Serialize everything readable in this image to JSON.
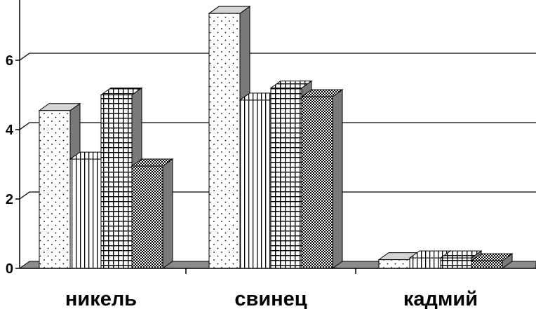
{
  "chart_data": {
    "type": "bar",
    "title": "",
    "xlabel": "",
    "ylabel": "",
    "categories": [
      "никель",
      "свинец",
      "кадмий"
    ],
    "ylim": [
      0,
      8
    ],
    "yticks": [
      "0",
      "2",
      "4",
      "6"
    ],
    "grid": true,
    "legend": "none",
    "series": [
      {
        "pattern": "dots",
        "values": [
          4.55,
          7.35,
          0.25
        ]
      },
      {
        "pattern": "vertical-lines",
        "values": [
          3.15,
          4.85,
          0.3
        ]
      },
      {
        "pattern": "grid",
        "values": [
          5.0,
          5.2,
          0.3
        ]
      },
      {
        "pattern": "checker",
        "values": [
          2.95,
          4.95,
          0.22
        ]
      }
    ]
  }
}
